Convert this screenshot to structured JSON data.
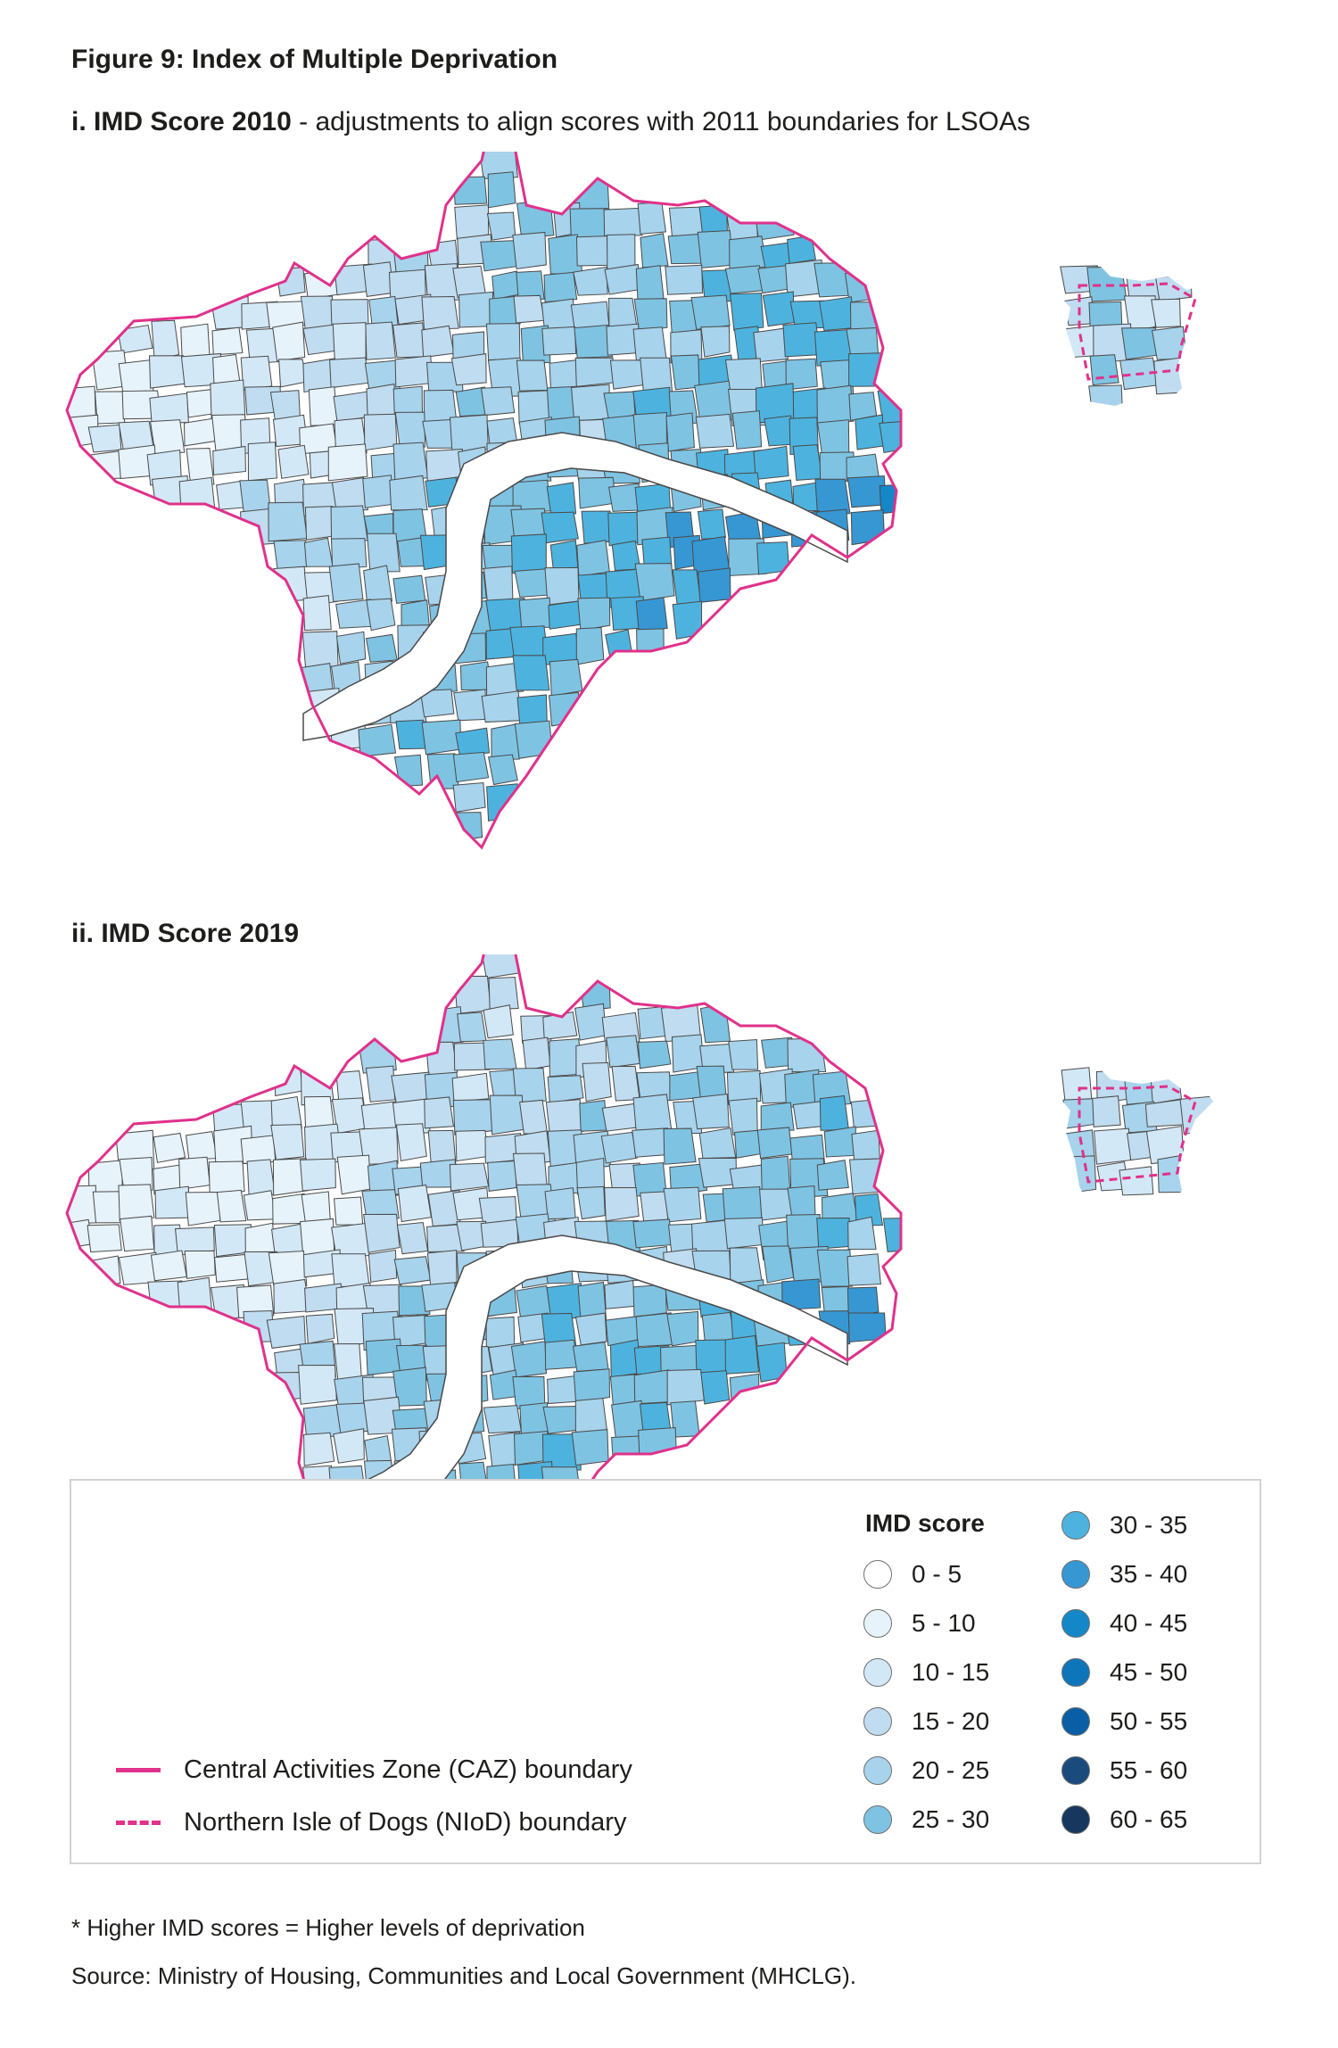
{
  "figure_title": "Figure 9: Index of Multiple Deprivation",
  "panels": [
    {
      "title_bold": "i. IMD Score 2010",
      "title_rest": " - adjustments to align scores with 2011 boundaries for LSOAs"
    },
    {
      "title_bold": "ii. IMD Score 2019",
      "title_rest": ""
    }
  ],
  "legend": {
    "title": "IMD score",
    "bins": [
      {
        "label": "0 - 5",
        "color": "#ffffff"
      },
      {
        "label": "5 - 10",
        "color": "#e6f3fb"
      },
      {
        "label": "10 - 15",
        "color": "#d3e8f6"
      },
      {
        "label": "15 - 20",
        "color": "#c0dcf0"
      },
      {
        "label": "20 - 25",
        "color": "#a7d3ec"
      },
      {
        "label": "25 - 30",
        "color": "#7fc3e2"
      },
      {
        "label": "30 - 35",
        "color": "#4db3de"
      },
      {
        "label": "35 - 40",
        "color": "#3797d3"
      },
      {
        "label": "40 - 45",
        "color": "#1487c9"
      },
      {
        "label": "45 - 50",
        "color": "#0e75bb"
      },
      {
        "label": "50 - 55",
        "color": "#0a5ea5"
      },
      {
        "label": "55 - 60",
        "color": "#1b4a7d"
      },
      {
        "label": "60 - 65",
        "color": "#17375e"
      }
    ],
    "boundaries": [
      {
        "label": "Central Activities Zone (CAZ) boundary",
        "style": "solid",
        "color": "#e0318b"
      },
      {
        "label": "Northern Isle of Dogs (NIoD) boundary",
        "style": "dashed",
        "color": "#e0318b"
      }
    ]
  },
  "footnote": "* Higher IMD scores = Higher levels of deprivation",
  "source": "Source: Ministry of Housing, Communities and Local Government (MHCLG)."
}
